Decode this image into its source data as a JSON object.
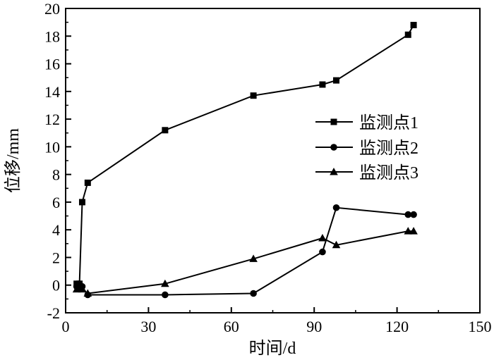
{
  "chart_data": {
    "type": "line",
    "xlabel": "时间/d",
    "ylabel": "位移/mm",
    "xlim": [
      0,
      150
    ],
    "ylim": [
      -2,
      20
    ],
    "xticks": [
      0,
      30,
      60,
      90,
      120,
      150
    ],
    "yticks": [
      -2,
      0,
      2,
      4,
      6,
      8,
      10,
      12,
      14,
      16,
      18,
      20
    ],
    "grid": false,
    "legend_position": "center-right",
    "series": [
      {
        "name": "监测点1",
        "marker": "square",
        "x": [
          4,
          5,
          6,
          8,
          36,
          68,
          93,
          98,
          124,
          126
        ],
        "y": [
          0.1,
          0.1,
          6.0,
          7.4,
          11.2,
          13.7,
          14.5,
          14.8,
          18.1,
          18.8
        ]
      },
      {
        "name": "监测点2",
        "marker": "circle",
        "x": [
          4,
          5,
          6,
          8,
          36,
          68,
          93,
          98,
          124,
          126
        ],
        "y": [
          -0.1,
          0.1,
          -0.1,
          -0.7,
          -0.7,
          -0.6,
          2.4,
          5.6,
          5.1,
          5.1
        ]
      },
      {
        "name": "监测点3",
        "marker": "triangle",
        "x": [
          4,
          5,
          6,
          8,
          36,
          68,
          93,
          98,
          124,
          126
        ],
        "y": [
          -0.3,
          -0.2,
          -0.3,
          -0.6,
          0.1,
          1.9,
          3.4,
          2.9,
          3.9,
          3.9
        ]
      }
    ]
  }
}
